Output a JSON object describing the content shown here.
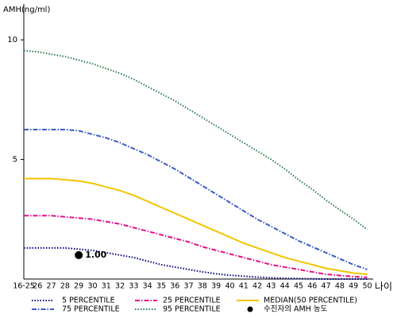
{
  "chart_data": {
    "type": "line",
    "y_label": "AMH(ng/ml)",
    "x_label": "나이",
    "categories": [
      "16-25",
      "26",
      "27",
      "28",
      "29",
      "30",
      "31",
      "32",
      "33",
      "34",
      "35",
      "36",
      "37",
      "38",
      "39",
      "40",
      "41",
      "42",
      "43",
      "44",
      "45",
      "46",
      "47",
      "48",
      "49",
      "50"
    ],
    "ylim": [
      0,
      11.5
    ],
    "yticks": [
      5,
      10
    ],
    "series": [
      {
        "name": "5 PERCENTILE",
        "color": "#000080",
        "style": "dotted",
        "values": [
          1.3,
          1.3,
          1.3,
          1.3,
          1.25,
          1.2,
          1.1,
          1.0,
          0.9,
          0.75,
          0.6,
          0.5,
          0.4,
          0.3,
          0.22,
          0.16,
          0.12,
          0.08,
          0.05,
          0.03,
          0.02,
          0.01,
          0,
          0,
          0,
          0
        ]
      },
      {
        "name": "75 PERCENTILE",
        "color": "#3b5bc8",
        "style": "dashdot",
        "values": [
          6.25,
          6.25,
          6.25,
          6.25,
          6.2,
          6.05,
          5.9,
          5.7,
          5.45,
          5.2,
          4.9,
          4.6,
          4.25,
          3.9,
          3.55,
          3.2,
          2.85,
          2.5,
          2.2,
          1.9,
          1.6,
          1.35,
          1.1,
          0.85,
          0.6,
          0.4
        ]
      },
      {
        "name": "25 PERCENTILE",
        "color": "#e0108a",
        "style": "dashdot",
        "values": [
          2.65,
          2.65,
          2.65,
          2.6,
          2.55,
          2.5,
          2.4,
          2.3,
          2.15,
          2.0,
          1.85,
          1.7,
          1.55,
          1.35,
          1.2,
          1.05,
          0.9,
          0.75,
          0.6,
          0.5,
          0.4,
          0.3,
          0.2,
          0.15,
          0.1,
          0.07
        ]
      },
      {
        "name": "95 PERCENTILE",
        "color": "#2e7d4e",
        "style": "dotted",
        "values": [
          9.55,
          9.5,
          9.4,
          9.3,
          9.15,
          9.0,
          8.8,
          8.6,
          8.35,
          8.05,
          7.75,
          7.45,
          7.1,
          6.75,
          6.4,
          6.05,
          5.7,
          5.35,
          5.0,
          4.6,
          4.15,
          3.75,
          3.3,
          2.9,
          2.5,
          2.07
        ]
      },
      {
        "name": "MEDIAN(50 PERCENTILE)",
        "color": "#f2c400",
        "style": "solid",
        "values": [
          4.2,
          4.2,
          4.2,
          4.15,
          4.1,
          4.0,
          3.85,
          3.7,
          3.5,
          3.25,
          3.0,
          2.75,
          2.5,
          2.25,
          2.0,
          1.75,
          1.5,
          1.3,
          1.1,
          0.9,
          0.75,
          0.6,
          0.45,
          0.35,
          0.25,
          0.2
        ]
      }
    ],
    "patient": {
      "name": "수진자의 AMH 농도",
      "color": "#000000",
      "x": "29",
      "values": [
        1
      ],
      "value_labels": [
        "1.00"
      ]
    }
  }
}
